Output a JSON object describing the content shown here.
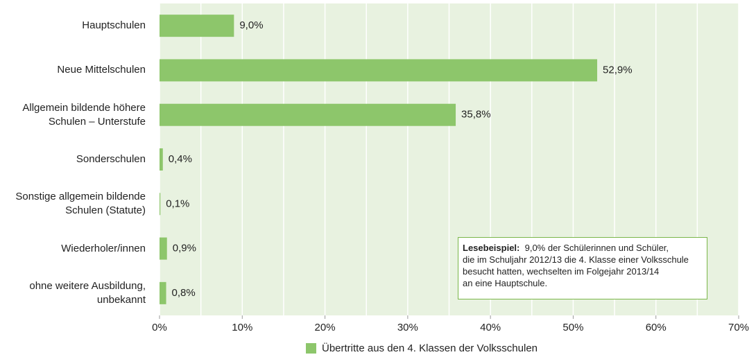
{
  "chart_data": {
    "type": "hbar",
    "categories": [
      "Hauptschulen",
      "Neue Mittelschulen",
      "Allgemein bildende höhere\nSchulen – Unterstufe",
      "Sonderschulen",
      "Sonstige allgemein bildende\nSchulen (Statute)",
      "Wiederholer/innen",
      "ohne weitere Ausbildung,\nunbekannt"
    ],
    "series": [
      {
        "name": "Übertritte aus den 4. Klassen der Volksschulen",
        "color": "#8dc66b",
        "values": [
          9.0,
          52.9,
          35.8,
          0.4,
          0.1,
          0.9,
          0.8
        ],
        "value_labels": [
          "9,0%",
          "52,9%",
          "35,8%",
          "0,4%",
          "0,1%",
          "0,9%",
          "0,8%"
        ]
      }
    ],
    "xlim": [
      0,
      70
    ],
    "xticks": [
      {
        "value": 0,
        "label": "0%"
      },
      {
        "value": 10,
        "label": "10%"
      },
      {
        "value": 20,
        "label": "20%"
      },
      {
        "value": 30,
        "label": "30%"
      },
      {
        "value": 40,
        "label": "40%"
      },
      {
        "value": 50,
        "label": "50%"
      },
      {
        "value": 60,
        "label": "60%"
      },
      {
        "value": 70,
        "label": "70%"
      }
    ],
    "xminorticks": [
      5,
      15,
      25,
      35,
      45,
      55,
      65
    ],
    "grid": true,
    "legend": "bottom",
    "annotation": {
      "label": "Lesebeispiel:",
      "text": "9,0% der Schülerinnen und Schüler,\ndie im Schuljahr 2012/13 die 4. Klasse einer Volksschule\nbesucht hatten, wechselten im Folgejahr 2013/14\nan eine Hauptschule."
    }
  }
}
